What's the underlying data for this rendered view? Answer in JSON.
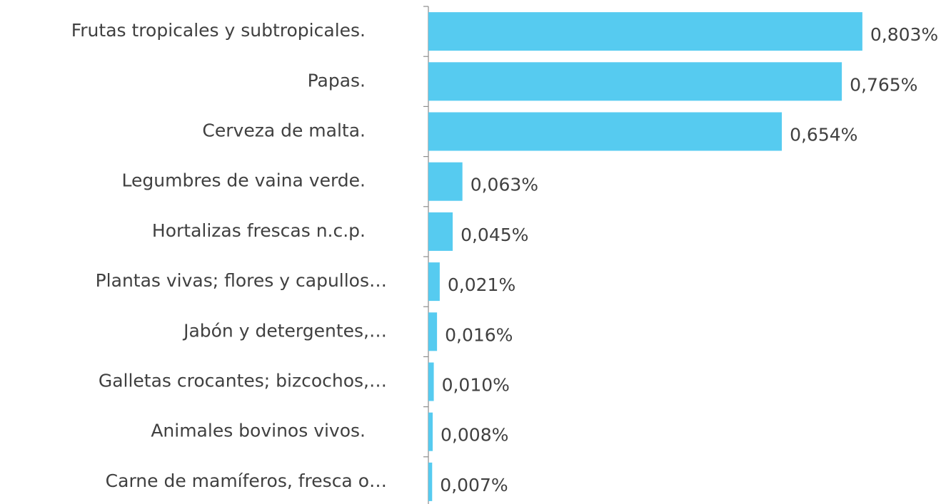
{
  "chart_data": {
    "type": "hbar",
    "categories": [
      "Frutas tropicales y subtropicales.",
      "Papas.",
      "Cerveza de malta.",
      "Legumbres de vaina verde.",
      "Hortalizas frescas n.c.p.",
      "Plantas vivas; flores y capullos…",
      "Jabón y detergentes,…",
      "Galletas crocantes; bizcochos,…",
      "Animales bovinos vivos.",
      "Carne de mamíferos, fresca o…"
    ],
    "values": [
      0.803,
      0.765,
      0.654,
      0.063,
      0.045,
      0.021,
      0.016,
      0.01,
      0.008,
      0.007
    ],
    "value_labels": [
      "0,803%",
      "0,765%",
      "0,654%",
      "0,063%",
      "0,045%",
      "0,021%",
      "0,016%",
      "0,010%",
      "0,008%",
      "0,007%"
    ],
    "color": "#56cbf0",
    "xlim": [
      0,
      1
    ]
  }
}
